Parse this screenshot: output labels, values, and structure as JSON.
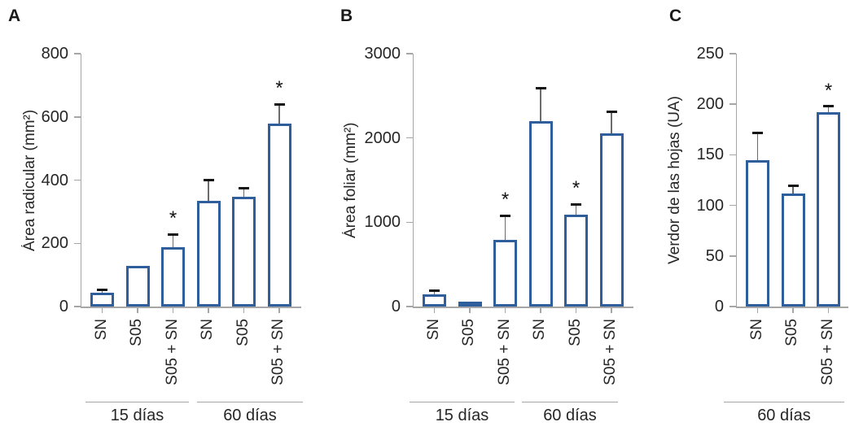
{
  "figure_title": "Bar chart figure with three panels (A, B, C)",
  "sig_symbol": "*",
  "colors": {
    "bar_border": "#2e5f9c",
    "bar_fill": "#ffffff",
    "error_stem": "#6b6b6b",
    "error_cap": "#141414",
    "axis": "#a6a6a6",
    "text": "#262626"
  },
  "chart_data": [
    {
      "type": "bar",
      "panel": "A",
      "title": "",
      "xlabel": "",
      "ylabel": "Área radicular (mm²)",
      "ylim": [
        0,
        800
      ],
      "yticks": [
        0,
        200,
        400,
        600,
        800
      ],
      "grid": false,
      "legend": "none",
      "categories": [
        "SN",
        "S05",
        "S05 + SN",
        "SN",
        "S05",
        "S05 + SN"
      ],
      "values": [
        44,
        128,
        188,
        335,
        348,
        578
      ],
      "errors": [
        10,
        null,
        40,
        65,
        25,
        62
      ],
      "significant": [
        false,
        false,
        true,
        false,
        false,
        true
      ],
      "groups": [
        {
          "label": "15 días",
          "from": 0,
          "to": 2
        },
        {
          "label": "60 días",
          "from": 3,
          "to": 5
        }
      ]
    },
    {
      "type": "bar",
      "panel": "B",
      "title": "",
      "xlabel": "",
      "ylabel": "Área foliar (mm²)",
      "ylim": [
        0,
        3000
      ],
      "yticks": [
        0,
        1000,
        2000,
        3000
      ],
      "grid": false,
      "legend": "none",
      "categories": [
        "SN",
        "S05",
        "S05 + SN",
        "SN",
        "S05",
        "S05 + SN"
      ],
      "values": [
        145,
        55,
        790,
        2200,
        1090,
        2050
      ],
      "errors": [
        45,
        null,
        290,
        390,
        125,
        265
      ],
      "significant": [
        false,
        false,
        true,
        false,
        true,
        false
      ],
      "groups": [
        {
          "label": "15 días",
          "from": 0,
          "to": 2
        },
        {
          "label": "60 días",
          "from": 3,
          "to": 5
        }
      ]
    },
    {
      "type": "bar",
      "panel": "C",
      "title": "",
      "xlabel": "",
      "ylabel": "Verdor de las hojas (UA)",
      "ylim": [
        0,
        250
      ],
      "yticks": [
        0,
        50,
        100,
        150,
        200,
        250
      ],
      "grid": false,
      "legend": "none",
      "categories": [
        "SN",
        "S05",
        "S05 + SN"
      ],
      "values": [
        145,
        112,
        192
      ],
      "errors": [
        27,
        7,
        6
      ],
      "significant": [
        false,
        false,
        true
      ],
      "groups": [
        {
          "label": "60 días",
          "from": 0,
          "to": 2
        }
      ]
    }
  ]
}
